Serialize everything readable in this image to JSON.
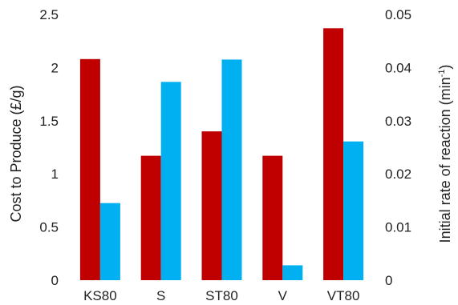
{
  "chart_data": {
    "type": "bar",
    "categories": [
      "KS80",
      "S",
      "ST80",
      "V",
      "VT80"
    ],
    "series": [
      {
        "axis": "left",
        "color": "#c00000",
        "values": [
          2.08,
          1.17,
          1.4,
          1.17,
          2.37
        ]
      },
      {
        "axis": "right",
        "color": "#00b0f0",
        "values": [
          0.0145,
          0.0373,
          0.0415,
          0.0028,
          0.0261
        ]
      }
    ],
    "ylabel_left": "Cost to Produce (£/g)",
    "ylabel_right_main": "Initial rate of reaction (min",
    "ylabel_right_sup": "-1",
    "ylabel_right_end": ")",
    "ylim_left": [
      0,
      2.5
    ],
    "ylim_right": [
      0,
      0.05
    ],
    "yticks_left": [
      "0",
      "0.5",
      "1",
      "1.5",
      "2",
      "2.5"
    ],
    "yticks_right": [
      "0",
      "0.01",
      "0.02",
      "0.03",
      "0.04",
      "0.05"
    ],
    "grid": false,
    "legend": "none"
  }
}
